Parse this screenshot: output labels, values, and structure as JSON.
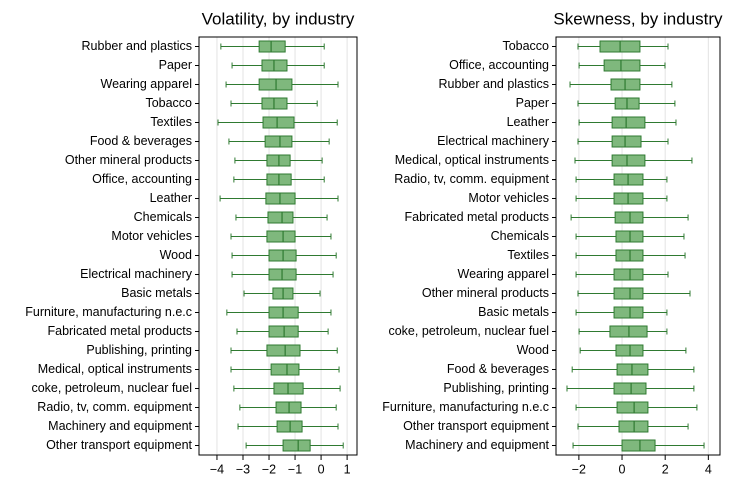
{
  "chart_data": [
    {
      "type": "box",
      "title": "Volatility, by industry",
      "categories": [
        "Rubber and plastics",
        "Paper",
        "Wearing apparel",
        "Tobacco",
        "Textiles",
        "Food & beverages",
        "Other mineral products",
        "Office, accounting",
        "Leather",
        "Chemicals",
        "Motor vehicles",
        "Wood",
        "Electrical machinery",
        "Basic metals",
        "Furniture, manufacturing n.e.c",
        "Fabricated metal products",
        "Publishing, printing",
        "Medical, optical instruments",
        "coke, petroleum, nuclear fuel",
        "Radio, tv, comm. equipment",
        "Machinery and equipment",
        "Other transport equipment"
      ],
      "whisker_low": [
        -3.85,
        -3.42,
        -3.65,
        -3.46,
        -3.96,
        -3.54,
        -3.31,
        -3.35,
        -3.88,
        -3.27,
        -3.46,
        -3.42,
        -3.42,
        -2.96,
        -3.62,
        -3.23,
        -3.46,
        -3.46,
        -3.35,
        -3.12,
        -3.19,
        -2.88
      ],
      "q1": [
        -2.38,
        -2.27,
        -2.38,
        -2.27,
        -2.23,
        -2.15,
        -2.08,
        -2.08,
        -2.12,
        -2.04,
        -2.08,
        -2.0,
        -2.0,
        -1.85,
        -2.0,
        -2.0,
        -2.08,
        -1.92,
        -1.81,
        -1.73,
        -1.69,
        -1.46
      ],
      "median": [
        -1.92,
        -1.81,
        -1.73,
        -1.81,
        -1.69,
        -1.58,
        -1.62,
        -1.62,
        -1.58,
        -1.5,
        -1.46,
        -1.46,
        -1.5,
        -1.46,
        -1.46,
        -1.42,
        -1.38,
        -1.31,
        -1.27,
        -1.23,
        -1.19,
        -0.88
      ],
      "q3": [
        -1.38,
        -1.31,
        -1.12,
        -1.31,
        -1.04,
        -1.12,
        -1.19,
        -1.15,
        -1.0,
        -1.08,
        -1.0,
        -0.96,
        -0.96,
        -1.08,
        -0.88,
        -0.88,
        -0.81,
        -0.85,
        -0.69,
        -0.77,
        -0.73,
        -0.42
      ],
      "whisker_high": [
        0.12,
        0.12,
        0.65,
        -0.15,
        0.62,
        0.31,
        0.04,
        0.12,
        0.65,
        0.23,
        0.38,
        0.58,
        0.46,
        -0.04,
        0.38,
        0.27,
        0.62,
        0.69,
        0.73,
        0.58,
        0.65,
        0.85
      ],
      "xlim": [
        -4.69,
        1.38
      ],
      "xticks": [
        {
          "value": -4,
          "label": "−4"
        },
        {
          "value": -3,
          "label": "−3"
        },
        {
          "value": -2,
          "label": "−2"
        },
        {
          "value": -1,
          "label": "−1"
        },
        0,
        1
      ],
      "grid": true,
      "color": "#7fb87d",
      "edge_color": "#2f7a31"
    },
    {
      "type": "box",
      "title": "Skewness, by industry",
      "categories": [
        "Tobacco",
        "Office, accounting",
        "Rubber and plastics",
        "Paper",
        "Leather",
        "Electrical machinery",
        "Medical, optical instruments",
        "Radio, tv, comm. equipment",
        "Motor vehicles",
        "Fabricated metal products",
        "Chemicals",
        "Textiles",
        "Wearing apparel",
        "Other mineral products",
        "Basic metals",
        "coke, petroleum, nuclear fuel",
        "Wood",
        "Food & beverages",
        "Publishing, printing",
        "Furniture, manufacturing n.e.c",
        "Other transport equipment",
        "Machinery and equipment"
      ],
      "whisker_low": [
        -2.04,
        -1.99,
        -2.41,
        -2.04,
        -1.99,
        -2.04,
        -2.18,
        -2.13,
        -2.13,
        -2.36,
        -2.13,
        -2.13,
        -2.13,
        -2.04,
        -2.13,
        -1.99,
        -1.94,
        -2.31,
        -2.55,
        -2.13,
        -2.04,
        -2.27
      ],
      "q1": [
        -1.02,
        -0.83,
        -0.51,
        -0.32,
        -0.46,
        -0.46,
        -0.46,
        -0.37,
        -0.37,
        -0.32,
        -0.28,
        -0.28,
        -0.37,
        -0.37,
        -0.37,
        -0.56,
        -0.28,
        -0.23,
        -0.37,
        -0.23,
        -0.14,
        0.0
      ],
      "median": [
        -0.09,
        -0.05,
        0.14,
        0.23,
        0.19,
        0.14,
        0.23,
        0.28,
        0.28,
        0.37,
        0.37,
        0.37,
        0.37,
        0.37,
        0.37,
        0.32,
        0.37,
        0.46,
        0.42,
        0.56,
        0.56,
        0.83
      ],
      "q3": [
        0.83,
        0.83,
        0.83,
        0.79,
        1.06,
        0.88,
        1.06,
        0.97,
        0.97,
        0.97,
        0.97,
        0.97,
        0.97,
        0.97,
        0.97,
        1.16,
        0.97,
        1.2,
        1.11,
        1.2,
        1.2,
        1.53
      ],
      "whisker_high": [
        2.13,
        1.99,
        2.31,
        2.45,
        2.5,
        2.13,
        3.24,
        2.08,
        2.08,
        3.06,
        2.87,
        2.92,
        2.13,
        3.15,
        2.08,
        2.08,
        2.96,
        3.33,
        3.33,
        3.47,
        3.06,
        3.8
      ],
      "xlim": [
        -3.06,
        4.54
      ],
      "xticks": [
        {
          "value": -2,
          "label": "−2"
        },
        0,
        2,
        4
      ],
      "grid": true,
      "color": "#7fb87d",
      "edge_color": "#2f7a31"
    }
  ]
}
